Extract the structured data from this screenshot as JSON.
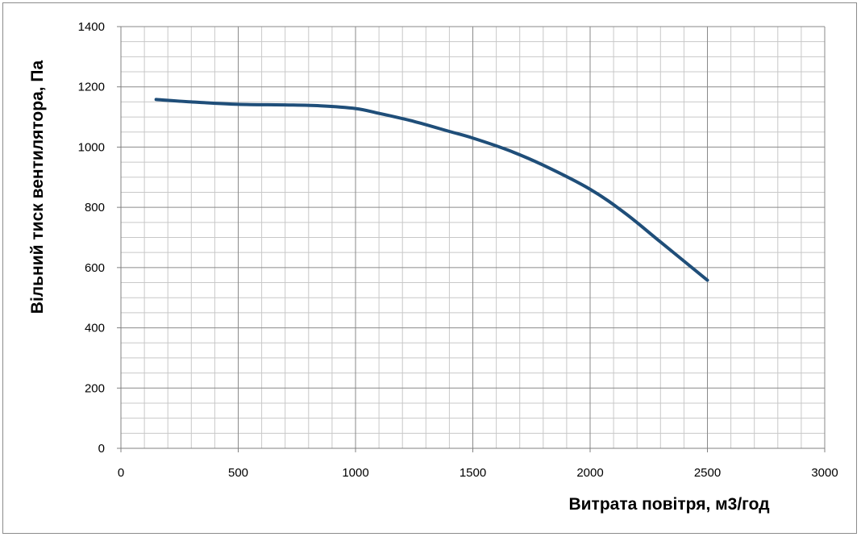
{
  "chart_data": {
    "type": "line",
    "xlabel": "Витрата повітря, м3/год",
    "ylabel": "Вільний тиск вентилятора, Па",
    "xlim": [
      0,
      3000
    ],
    "ylim": [
      0,
      1400
    ],
    "x_ticks": [
      0,
      500,
      1000,
      1500,
      2000,
      2500,
      3000
    ],
    "y_ticks": [
      0,
      200,
      400,
      600,
      800,
      1000,
      1200,
      1400
    ],
    "x_tick_labels": [
      "0",
      "500",
      "1000",
      "1500",
      "2000",
      "2500",
      "3000"
    ],
    "y_tick_labels": [
      "0",
      "200",
      "400",
      "600",
      "800",
      "1000",
      "1200",
      "1400"
    ],
    "grid": true,
    "x_minor_step": 100,
    "y_minor_step": 50,
    "series": [
      {
        "color": "#1f4e79",
        "x": [
          150,
          300,
          500,
          700,
          850,
          1000,
          1100,
          1250,
          1400,
          1500,
          1650,
          1800,
          2000,
          2150,
          2300,
          2500
        ],
        "y": [
          1158,
          1150,
          1142,
          1140,
          1137,
          1128,
          1112,
          1085,
          1052,
          1030,
          990,
          940,
          860,
          780,
          685,
          558
        ]
      }
    ]
  }
}
